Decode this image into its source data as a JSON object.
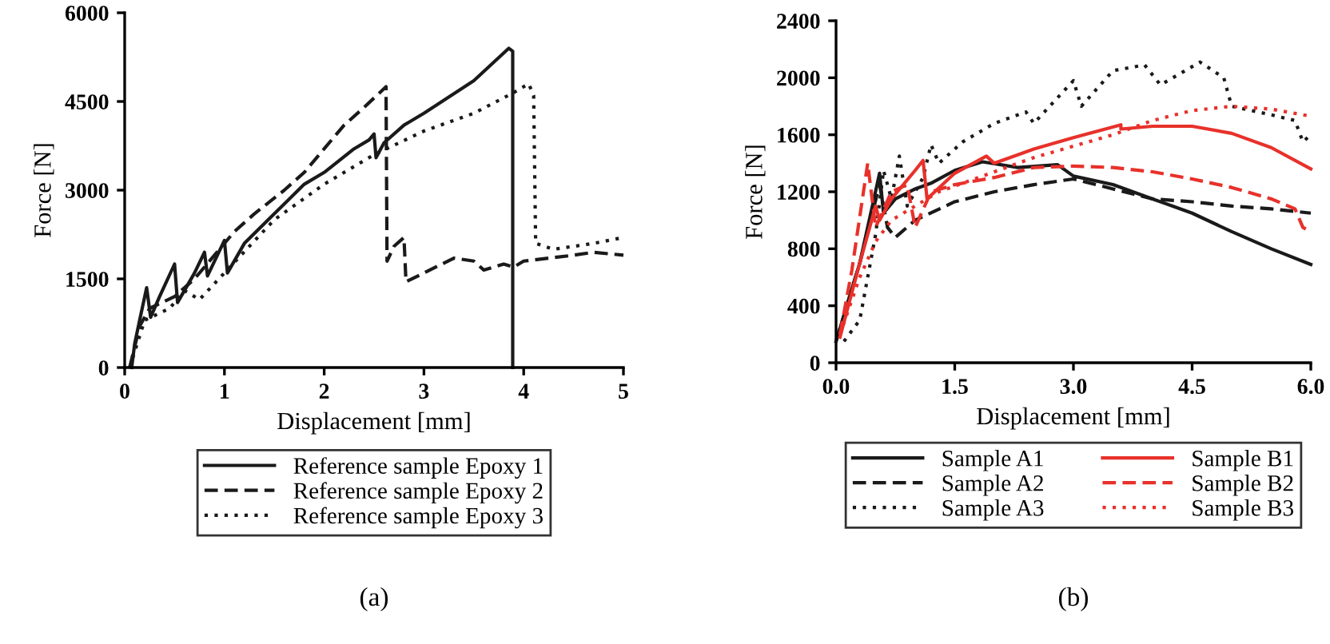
{
  "chart_data": [
    {
      "type": "line",
      "xlabel": "Displacement [mm]",
      "ylabel": "Force [N]",
      "xlim": [
        0,
        5
      ],
      "ylim": [
        0,
        6000
      ],
      "xticks": [
        0,
        1,
        2,
        3,
        4,
        5
      ],
      "yticks": [
        0,
        1500,
        3000,
        4500,
        6000
      ],
      "legend": "bottom",
      "grid": false,
      "annotations": [
        "(a)"
      ],
      "series": [
        {
          "name": "Reference sample Epoxy 1",
          "color": "#1a1a1a",
          "line_style": "solid",
          "x": [
            0.07,
            0.1,
            0.15,
            0.22,
            0.26,
            0.35,
            0.5,
            0.53,
            0.7,
            0.8,
            0.83,
            1.0,
            1.03,
            1.2,
            1.5,
            1.8,
            2.0,
            2.3,
            2.45,
            2.5,
            2.52,
            2.6,
            2.8,
            3.0,
            3.5,
            3.85,
            3.89,
            3.89
          ],
          "values": [
            0,
            400,
            800,
            1350,
            850,
            1200,
            1750,
            1100,
            1600,
            1950,
            1550,
            2150,
            1600,
            2100,
            2600,
            3100,
            3300,
            3700,
            3850,
            3950,
            3550,
            3800,
            4100,
            4300,
            4850,
            5400,
            5350,
            0
          ]
        },
        {
          "name": "Reference sample Epoxy 2",
          "color": "#1a1a1a",
          "line_style": "dashed",
          "x": [
            0.05,
            0.15,
            0.25,
            0.5,
            0.7,
            0.9,
            1.1,
            1.3,
            1.6,
            1.8,
            2.0,
            2.2,
            2.4,
            2.62,
            2.63,
            2.7,
            2.8,
            2.82,
            3.0,
            3.3,
            3.5,
            3.6,
            3.8,
            3.9,
            4.0,
            4.5,
            4.7,
            5.0
          ],
          "values": [
            0,
            700,
            1000,
            1200,
            1500,
            1900,
            2300,
            2600,
            3000,
            3300,
            3700,
            4100,
            4400,
            4750,
            1800,
            2050,
            2200,
            1450,
            1600,
            1850,
            1800,
            1650,
            1750,
            1700,
            1800,
            1900,
            1950,
            1900
          ]
        },
        {
          "name": "Reference sample Epoxy 3",
          "color": "#1a1a1a",
          "line_style": "dotted",
          "x": [
            0.05,
            0.2,
            0.45,
            0.6,
            0.75,
            1.0,
            1.5,
            2.0,
            2.5,
            3.0,
            3.5,
            3.9,
            4.05,
            4.1,
            4.12,
            4.3,
            4.7,
            5.0
          ],
          "values": [
            0,
            800,
            1000,
            1300,
            1150,
            1600,
            2500,
            3100,
            3600,
            4000,
            4300,
            4650,
            4800,
            4600,
            2100,
            2000,
            2100,
            2200
          ]
        }
      ]
    },
    {
      "type": "line",
      "xlabel": "Displacement [mm]",
      "ylabel": "Force [N]",
      "xlim": [
        0,
        6
      ],
      "ylim": [
        0,
        2400
      ],
      "xticks": [
        {
          "value": 0,
          "label": "0.0"
        },
        {
          "value": 1.5,
          "label": "1.5"
        },
        {
          "value": 3,
          "label": "3.0"
        },
        {
          "value": 4.5,
          "label": "4.5"
        },
        {
          "value": 6,
          "label": "6.0"
        }
      ],
      "yticks": [
        0,
        400,
        800,
        1200,
        1600,
        2000,
        2400
      ],
      "legend": "bottom",
      "grid": false,
      "annotations": [
        "(b)"
      ],
      "series": [
        {
          "name": "Sample A1",
          "color": "#1a1a1a",
          "line_style": "solid",
          "x": [
            0,
            0.3,
            0.55,
            0.6,
            0.75,
            1.0,
            1.2,
            1.5,
            1.85,
            2.3,
            2.8,
            3.0,
            3.5,
            4.0,
            4.5,
            5.0,
            5.5,
            6.0
          ],
          "values": [
            150,
            700,
            1330,
            1050,
            1150,
            1220,
            1260,
            1350,
            1410,
            1370,
            1390,
            1310,
            1250,
            1150,
            1050,
            920,
            800,
            690
          ]
        },
        {
          "name": "Sample A2",
          "color": "#1a1a1a",
          "line_style": "dashed",
          "x": [
            0,
            0.3,
            0.55,
            0.65,
            0.75,
            1.0,
            1.5,
            2.0,
            2.5,
            3.0,
            3.5,
            4.0,
            4.5,
            5.0,
            5.5,
            6.0
          ],
          "values": [
            150,
            700,
            1250,
            950,
            880,
            1000,
            1130,
            1200,
            1250,
            1290,
            1220,
            1150,
            1130,
            1100,
            1080,
            1050
          ]
        },
        {
          "name": "Sample A3",
          "color": "#1a1a1a",
          "line_style": "dotted",
          "x": [
            0.1,
            0.3,
            0.5,
            0.6,
            0.7,
            0.8,
            0.9,
            1.1,
            1.2,
            1.3,
            1.6,
            2.0,
            2.4,
            2.5,
            3.0,
            3.1,
            3.5,
            3.9,
            4.1,
            4.6,
            4.9,
            5.0,
            5.5,
            5.8,
            5.9,
            6.0
          ],
          "values": [
            150,
            300,
            900,
            1350,
            1150,
            1450,
            1100,
            1300,
            1530,
            1400,
            1550,
            1680,
            1760,
            1680,
            1980,
            1800,
            2050,
            2090,
            1950,
            2110,
            2000,
            1800,
            1740,
            1700,
            1550,
            1600
          ]
        },
        {
          "name": "Sample B1",
          "color": "#e8312b",
          "line_style": "solid",
          "x": [
            0.05,
            0.3,
            0.5,
            0.55,
            0.7,
            1.0,
            1.1,
            1.15,
            1.5,
            1.9,
            2.0,
            2.5,
            3.0,
            3.6,
            3.6,
            4.0,
            4.5,
            5.0,
            5.5,
            6.0
          ],
          "values": [
            180,
            700,
            1100,
            1000,
            1150,
            1350,
            1420,
            1150,
            1330,
            1450,
            1400,
            1500,
            1580,
            1670,
            1640,
            1660,
            1660,
            1610,
            1510,
            1360
          ]
        },
        {
          "name": "Sample B2",
          "color": "#e8312b",
          "line_style": "dashed",
          "x": [
            0.05,
            0.2,
            0.4,
            0.5,
            0.7,
            0.9,
            1.0,
            1.2,
            1.5,
            2.0,
            2.5,
            3.0,
            3.5,
            4.0,
            4.5,
            5.0,
            5.5,
            5.8,
            5.9,
            6.0
          ],
          "values": [
            200,
            650,
            1400,
            950,
            1200,
            1250,
            950,
            1200,
            1250,
            1300,
            1370,
            1380,
            1370,
            1340,
            1290,
            1230,
            1150,
            1080,
            950,
            920
          ]
        },
        {
          "name": "Sample B3",
          "color": "#e8312b",
          "line_style": "dotted",
          "x": [
            0.05,
            0.3,
            0.5,
            0.7,
            1.0,
            1.3,
            1.8,
            2.5,
            3.0,
            3.5,
            4.0,
            4.5,
            5.0,
            5.5,
            5.8,
            6.0
          ],
          "values": [
            200,
            600,
            850,
            1000,
            1100,
            1200,
            1300,
            1440,
            1520,
            1600,
            1700,
            1770,
            1800,
            1780,
            1750,
            1730
          ]
        }
      ]
    }
  ]
}
